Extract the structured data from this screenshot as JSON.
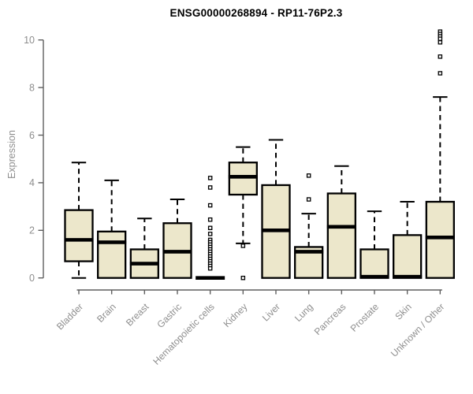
{
  "chart_data": {
    "type": "boxplot",
    "title": "ENSG00000268894 - RP11-76P2.3",
    "ylabel": "Expression",
    "xlabel": "",
    "ylim": [
      0,
      10
    ],
    "yticks": [
      0,
      2,
      4,
      6,
      8,
      10
    ],
    "grid": false,
    "legend": "none",
    "colors": {
      "box_fill": "#ece7cb",
      "box_stroke": "#000000",
      "median": "#000000",
      "axis_line": "#5f5f5f",
      "tick_label": "#8e8e8e",
      "title": "#000000",
      "outlier_fill": "#ffffff",
      "outlier_stroke": "#000000"
    },
    "categories": [
      "Bladder",
      "Brain",
      "Breast",
      "Gastric",
      "Hematopoietic cells",
      "Kidney",
      "Liver",
      "Lung",
      "Pancreas",
      "Prostate",
      "Skin",
      "Unknown / Other"
    ],
    "boxes": [
      {
        "label": "Bladder",
        "whisker_low": 0,
        "q1": 0.7,
        "median": 1.6,
        "q3": 2.85,
        "whisker_high": 4.85,
        "outliers": []
      },
      {
        "label": "Brain",
        "whisker_low": 0,
        "q1": 0,
        "median": 1.5,
        "q3": 1.95,
        "whisker_high": 4.1,
        "outliers": []
      },
      {
        "label": "Breast",
        "whisker_low": 0,
        "q1": 0,
        "median": 0.6,
        "q3": 1.2,
        "whisker_high": 2.5,
        "outliers": []
      },
      {
        "label": "Gastric",
        "whisker_low": 0,
        "q1": 0,
        "median": 1.1,
        "q3": 2.3,
        "whisker_high": 3.3,
        "outliers": []
      },
      {
        "label": "Hematopoietic cells",
        "whisker_low": 0,
        "q1": 0,
        "median": 0,
        "q3": 0,
        "whisker_high": 0,
        "outliers": [
          4.2,
          3.8,
          3.05,
          2.45,
          2.1,
          1.85,
          1.6,
          1.5,
          1.4,
          1.3,
          1.2,
          1.1,
          1.0,
          0.9,
          0.8,
          0.7,
          0.6,
          0.5,
          0.4
        ]
      },
      {
        "label": "Kidney",
        "whisker_low": 1.45,
        "q1": 3.5,
        "median": 4.25,
        "q3": 4.85,
        "whisker_high": 5.5,
        "outliers": [
          1.35,
          0
        ]
      },
      {
        "label": "Liver",
        "whisker_low": 0,
        "q1": 0,
        "median": 2.0,
        "q3": 3.9,
        "whisker_high": 5.8,
        "outliers": []
      },
      {
        "label": "Lung",
        "whisker_low": 0,
        "q1": 0,
        "median": 1.1,
        "q3": 1.3,
        "whisker_high": 2.7,
        "outliers": [
          4.3,
          3.3
        ]
      },
      {
        "label": "Pancreas",
        "whisker_low": 0,
        "q1": 0,
        "median": 2.15,
        "q3": 3.55,
        "whisker_high": 4.7,
        "outliers": []
      },
      {
        "label": "Prostate",
        "whisker_low": 0,
        "q1": 0,
        "median": 0.05,
        "q3": 1.2,
        "whisker_high": 2.8,
        "outliers": []
      },
      {
        "label": "Skin",
        "whisker_low": 0,
        "q1": 0,
        "median": 0.05,
        "q3": 1.8,
        "whisker_high": 3.2,
        "outliers": []
      },
      {
        "label": "Unknown / Other",
        "whisker_low": 0,
        "q1": 0,
        "median": 1.7,
        "q3": 3.2,
        "whisker_high": 7.6,
        "outliers": [
          10.35,
          10.25,
          10.15,
          10.05,
          9.9,
          9.3,
          8.6
        ]
      }
    ]
  }
}
